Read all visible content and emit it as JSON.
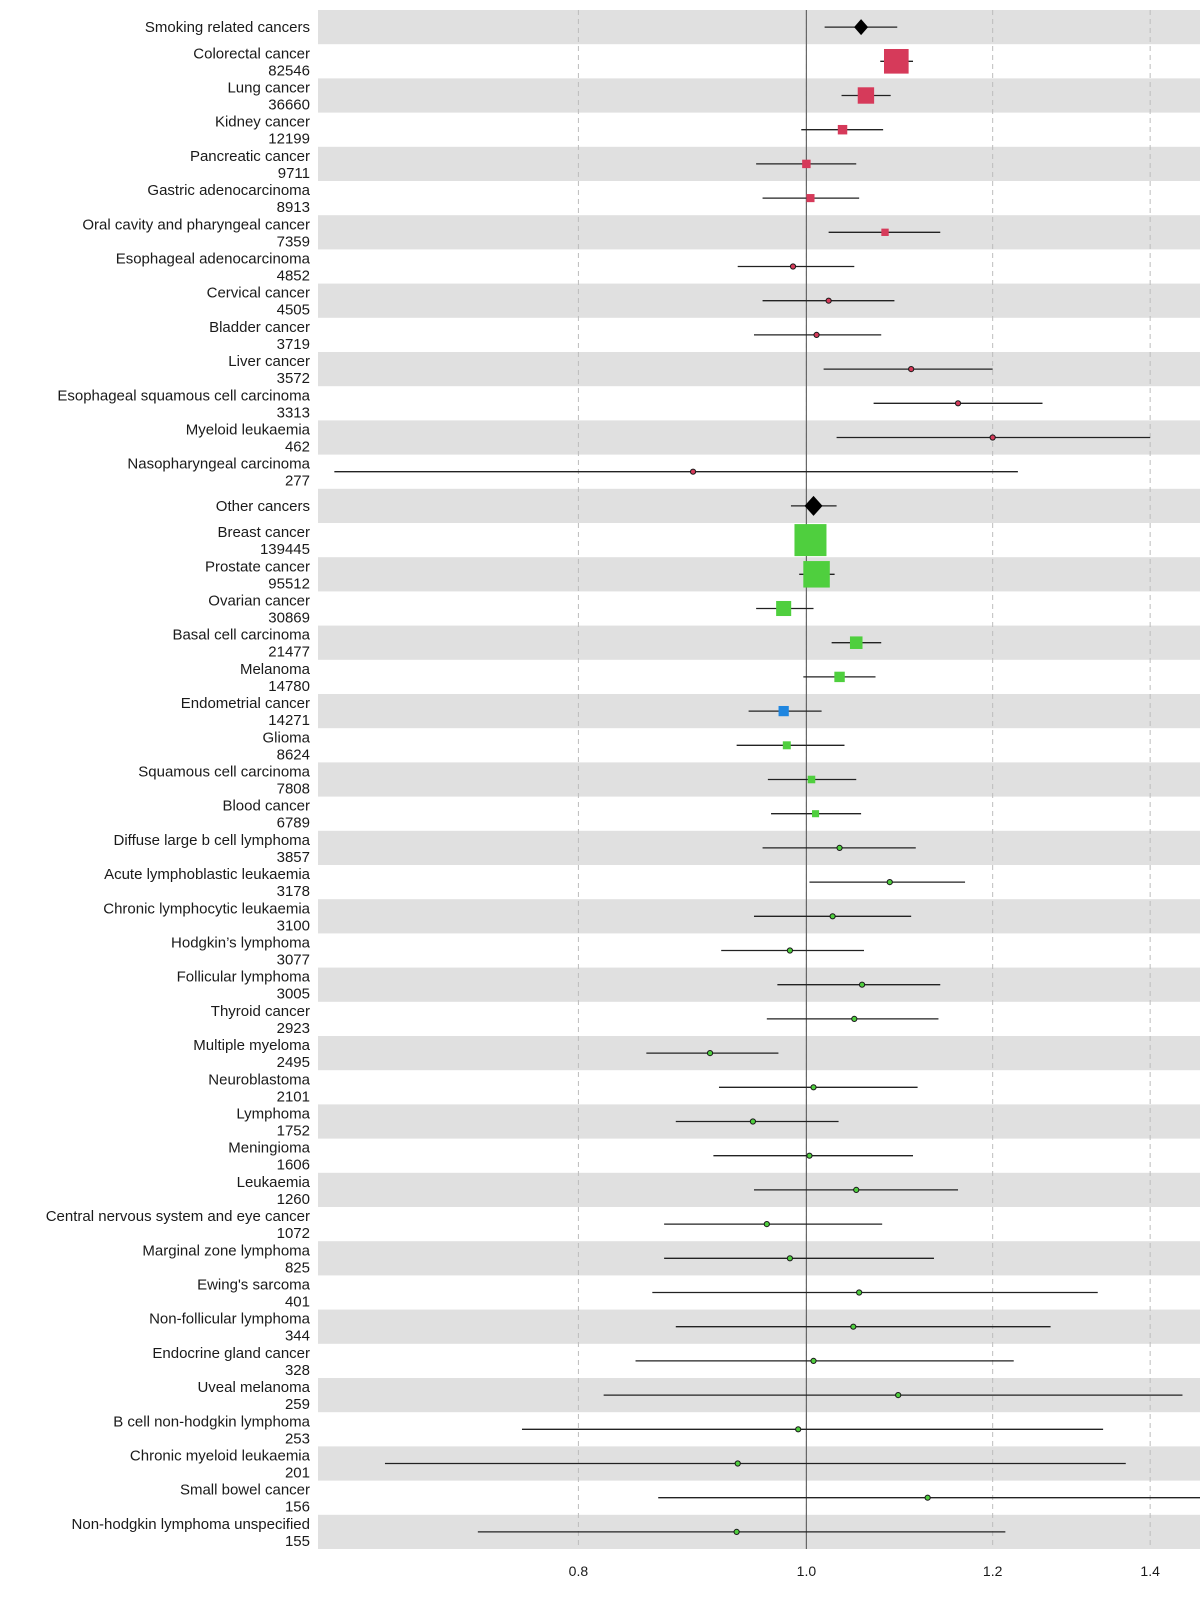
{
  "chart_data": {
    "type": "forest",
    "title": "",
    "xlabel": "",
    "ylabel": "",
    "x_scale": "log",
    "xlim": [
      0.62,
      1.47
    ],
    "x_ticks": [
      0.8,
      1.0,
      1.2,
      1.4
    ],
    "x_tick_labels": [
      "0.8",
      "1.0",
      "1.2",
      "1.4"
    ],
    "reference_line": 1.0,
    "grid": true,
    "legend": "none",
    "colors": {
      "smoking": "#d63a5a",
      "other": "#4fcf3e",
      "endometrial": "#1f86e0",
      "summary": "#000000",
      "band": "#e0e0e0"
    },
    "rows": [
      {
        "label": "Smoking related cancers",
        "n": "",
        "or": 1.055,
        "lo": 1.018,
        "hi": 1.093,
        "kind": "summary",
        "group": "smoking"
      },
      {
        "label": "Colorectal cancer",
        "n": "82546",
        "or": 1.092,
        "lo": 1.075,
        "hi": 1.11,
        "kind": "study",
        "group": "smoking"
      },
      {
        "label": "Lung cancer",
        "n": "36660",
        "or": 1.06,
        "lo": 1.035,
        "hi": 1.086,
        "kind": "study",
        "group": "smoking"
      },
      {
        "label": "Kidney cancer",
        "n": "12199",
        "or": 1.036,
        "lo": 0.995,
        "hi": 1.078,
        "kind": "study",
        "group": "smoking"
      },
      {
        "label": "Pancreatic cancer",
        "n": "9711",
        "or": 1.0,
        "lo": 0.952,
        "hi": 1.05,
        "kind": "study",
        "group": "smoking"
      },
      {
        "label": "Gastric adenocarcinoma",
        "n": "8913",
        "or": 1.004,
        "lo": 0.958,
        "hi": 1.053,
        "kind": "study",
        "group": "smoking"
      },
      {
        "label": "Oral cavity and pharyngeal cancer",
        "n": "7359",
        "or": 1.08,
        "lo": 1.022,
        "hi": 1.14,
        "kind": "study",
        "group": "smoking"
      },
      {
        "label": "Esophageal adenocarcinoma",
        "n": "4852",
        "or": 0.987,
        "lo": 0.935,
        "hi": 1.048,
        "kind": "study",
        "group": "smoking"
      },
      {
        "label": "Cervical cancer",
        "n": "4505",
        "or": 1.022,
        "lo": 0.958,
        "hi": 1.09,
        "kind": "study",
        "group": "smoking"
      },
      {
        "label": "Bladder cancer",
        "n": "3719",
        "or": 1.01,
        "lo": 0.95,
        "hi": 1.076,
        "kind": "study",
        "group": "smoking"
      },
      {
        "label": "Liver cancer",
        "n": "3572",
        "or": 1.108,
        "lo": 1.017,
        "hi": 1.2,
        "kind": "study",
        "group": "smoking"
      },
      {
        "label": "Esophageal squamous cell carcinoma",
        "n": "3313",
        "or": 1.16,
        "lo": 1.068,
        "hi": 1.26,
        "kind": "study",
        "group": "smoking"
      },
      {
        "label": "Myeloid leukaemia",
        "n": "462",
        "or": 1.2,
        "lo": 1.03,
        "hi": 1.4,
        "kind": "study",
        "group": "smoking"
      },
      {
        "label": "Nasopharyngeal carcinoma",
        "n": "277",
        "or": 0.895,
        "lo": 0.63,
        "hi": 1.23,
        "kind": "study",
        "group": "smoking"
      },
      {
        "label": "Other cancers",
        "n": "",
        "or": 1.007,
        "lo": 0.985,
        "hi": 1.03,
        "kind": "summary",
        "group": "other"
      },
      {
        "label": "Breast cancer",
        "n": "139445",
        "or": 1.004,
        "lo": 0.99,
        "hi": 1.018,
        "kind": "study",
        "group": "other"
      },
      {
        "label": "Prostate cancer",
        "n": "95512",
        "or": 1.01,
        "lo": 0.993,
        "hi": 1.028,
        "kind": "study",
        "group": "other"
      },
      {
        "label": "Ovarian cancer",
        "n": "30869",
        "or": 0.978,
        "lo": 0.952,
        "hi": 1.007,
        "kind": "study",
        "group": "other"
      },
      {
        "label": "Basal cell carcinoma",
        "n": "21477",
        "or": 1.05,
        "lo": 1.025,
        "hi": 1.076,
        "kind": "study",
        "group": "other"
      },
      {
        "label": "Melanoma",
        "n": "14780",
        "or": 1.033,
        "lo": 0.997,
        "hi": 1.07,
        "kind": "study",
        "group": "other"
      },
      {
        "label": "Endometrial cancer",
        "n": "14271",
        "or": 0.978,
        "lo": 0.945,
        "hi": 1.015,
        "kind": "study",
        "group": "endometrial"
      },
      {
        "label": "Glioma",
        "n": "8624",
        "or": 0.981,
        "lo": 0.934,
        "hi": 1.038,
        "kind": "study",
        "group": "other"
      },
      {
        "label": "Squamous cell carcinoma",
        "n": "7808",
        "or": 1.005,
        "lo": 0.963,
        "hi": 1.05,
        "kind": "study",
        "group": "other"
      },
      {
        "label": "Blood cancer",
        "n": "6789",
        "or": 1.009,
        "lo": 0.966,
        "hi": 1.055,
        "kind": "study",
        "group": "other"
      },
      {
        "label": "Diffuse large b cell lymphoma",
        "n": "3857",
        "or": 1.033,
        "lo": 0.958,
        "hi": 1.113,
        "kind": "study",
        "group": "other"
      },
      {
        "label": "Acute lymphoblastic leukaemia",
        "n": "3178",
        "or": 1.085,
        "lo": 1.003,
        "hi": 1.168,
        "kind": "study",
        "group": "other"
      },
      {
        "label": "Chronic lymphocytic leukaemia",
        "n": "3100",
        "or": 1.026,
        "lo": 0.95,
        "hi": 1.108,
        "kind": "study",
        "group": "other"
      },
      {
        "label": "Hodgkin’s lymphoma",
        "n": "3077",
        "or": 0.984,
        "lo": 0.92,
        "hi": 1.058,
        "kind": "study",
        "group": "other"
      },
      {
        "label": "Follicular lymphoma",
        "n": "3005",
        "or": 1.056,
        "lo": 0.972,
        "hi": 1.14,
        "kind": "study",
        "group": "other"
      },
      {
        "label": "Thyroid cancer",
        "n": "2923",
        "or": 1.048,
        "lo": 0.962,
        "hi": 1.138,
        "kind": "study",
        "group": "other"
      },
      {
        "label": "Multiple myeloma",
        "n": "2495",
        "or": 0.91,
        "lo": 0.855,
        "hi": 0.973,
        "kind": "study",
        "group": "other"
      },
      {
        "label": "Neuroblastoma",
        "n": "2101",
        "or": 1.007,
        "lo": 0.918,
        "hi": 1.115,
        "kind": "study",
        "group": "other"
      },
      {
        "label": "Lymphoma",
        "n": "1752",
        "or": 0.949,
        "lo": 0.88,
        "hi": 1.032,
        "kind": "study",
        "group": "other"
      },
      {
        "label": "Meningioma",
        "n": "1606",
        "or": 1.003,
        "lo": 0.913,
        "hi": 1.11,
        "kind": "study",
        "group": "other"
      },
      {
        "label": "Leukaemia",
        "n": "1260",
        "or": 1.05,
        "lo": 0.95,
        "hi": 1.16,
        "kind": "study",
        "group": "other"
      },
      {
        "label": "Central nervous system and eye cancer",
        "n": "1072",
        "or": 0.962,
        "lo": 0.87,
        "hi": 1.077,
        "kind": "study",
        "group": "other"
      },
      {
        "label": "Marginal zone lymphoma",
        "n": "825",
        "or": 0.984,
        "lo": 0.87,
        "hi": 1.133,
        "kind": "study",
        "group": "other"
      },
      {
        "label": "Ewing's sarcoma",
        "n": "401",
        "or": 1.053,
        "lo": 0.86,
        "hi": 1.33,
        "kind": "study",
        "group": "other"
      },
      {
        "label": "Non-follicular lymphoma",
        "n": "344",
        "or": 1.047,
        "lo": 0.88,
        "hi": 1.27,
        "kind": "study",
        "group": "other"
      },
      {
        "label": "Endocrine gland cancer",
        "n": "328",
        "or": 1.007,
        "lo": 0.846,
        "hi": 1.225,
        "kind": "study",
        "group": "other"
      },
      {
        "label": "Uveal melanoma",
        "n": "259",
        "or": 1.094,
        "lo": 0.82,
        "hi": 1.445,
        "kind": "study",
        "group": "other"
      },
      {
        "label": "B cell non-hodgkin lymphoma",
        "n": "253",
        "or": 0.992,
        "lo": 0.757,
        "hi": 1.337,
        "kind": "study",
        "group": "other"
      },
      {
        "label": "Chronic myeloid leukaemia",
        "n": "201",
        "or": 0.935,
        "lo": 0.662,
        "hi": 1.367,
        "kind": "study",
        "group": "other"
      },
      {
        "label": "Small bowel cancer",
        "n": "156",
        "or": 1.126,
        "lo": 0.865,
        "hi": 1.47,
        "kind": "study",
        "group": "other"
      },
      {
        "label": "Non-hodgkin lymphoma unspecified",
        "n": "155",
        "or": 0.934,
        "lo": 0.725,
        "hi": 1.215,
        "kind": "study",
        "group": "other"
      }
    ]
  }
}
